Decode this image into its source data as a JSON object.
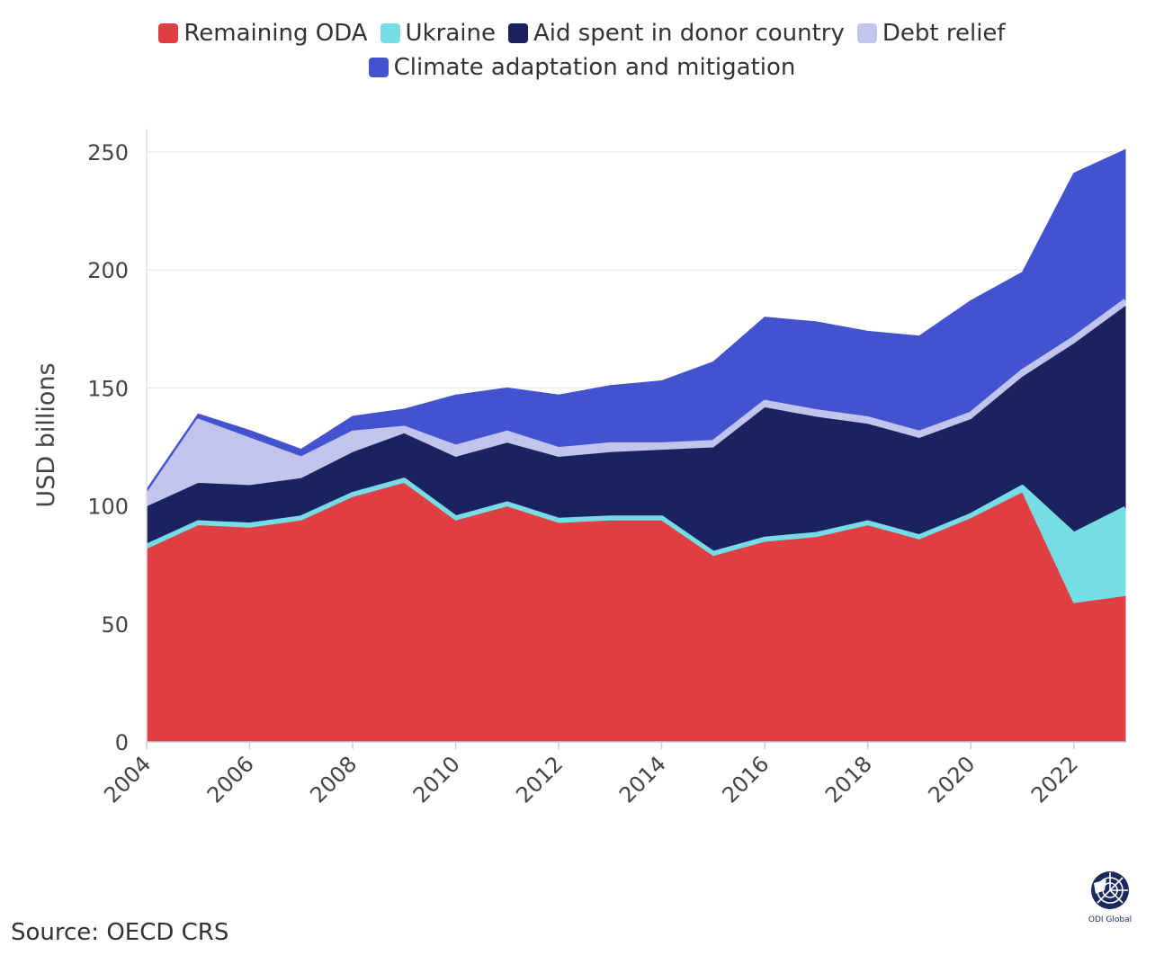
{
  "legend": [
    {
      "label": "Remaining ODA",
      "color": "#e03e42"
    },
    {
      "label": "Ukraine",
      "color": "#76dde6"
    },
    {
      "label": "Aid spent in donor country",
      "color": "#1b2260"
    },
    {
      "label": "Debt relief",
      "color": "#c1c5ec"
    },
    {
      "label": "Climate adaptation and mitigation",
      "color": "#4352ce"
    }
  ],
  "source": "Source: OECD CRS",
  "logo_text": "ODI Global",
  "chart_data": {
    "type": "area",
    "stacked": true,
    "ylabel": "USD billions",
    "xlabel": "",
    "ylim": [
      0,
      260
    ],
    "xlim": [
      2004,
      2023
    ],
    "yticks": [
      0,
      50,
      100,
      150,
      200,
      250
    ],
    "xticks": [
      2004,
      2006,
      2008,
      2010,
      2012,
      2014,
      2016,
      2018,
      2020,
      2022
    ],
    "x": [
      2004,
      2005,
      2006,
      2007,
      2008,
      2009,
      2010,
      2011,
      2012,
      2013,
      2014,
      2015,
      2016,
      2017,
      2018,
      2019,
      2020,
      2021,
      2022,
      2023
    ],
    "series": [
      {
        "name": "Remaining ODA",
        "color": "#e03e42",
        "values": [
          82,
          92,
          91,
          94,
          104,
          110,
          94,
          100,
          93,
          94,
          94,
          79,
          85,
          87,
          92,
          86,
          95,
          106,
          59,
          62
        ]
      },
      {
        "name": "Ukraine",
        "color": "#76dde6",
        "values": [
          1,
          1,
          1,
          1,
          1,
          1,
          1,
          1,
          1,
          1,
          1,
          1,
          1,
          1,
          1,
          1,
          1,
          2,
          29,
          37
        ]
      },
      {
        "name": "Aid spent in donor country",
        "color": "#1b2260",
        "values": [
          17,
          17,
          17,
          17,
          18,
          20,
          26,
          26,
          27,
          28,
          29,
          45,
          56,
          50,
          42,
          42,
          41,
          47,
          81,
          86
        ]
      },
      {
        "name": "Debt relief",
        "color": "#c1c5ec",
        "values": [
          4,
          26,
          19,
          8,
          8,
          2,
          4,
          4,
          3,
          3,
          2,
          2,
          2,
          2,
          2,
          2,
          2,
          2,
          2,
          2
        ]
      },
      {
        "name": "Climate adaptation and mitigation",
        "color": "#4352ce",
        "values": [
          3,
          3,
          4,
          4,
          7,
          8,
          22,
          19,
          23,
          25,
          27,
          34,
          36,
          38,
          37,
          41,
          48,
          42,
          70,
          64
        ]
      }
    ]
  }
}
